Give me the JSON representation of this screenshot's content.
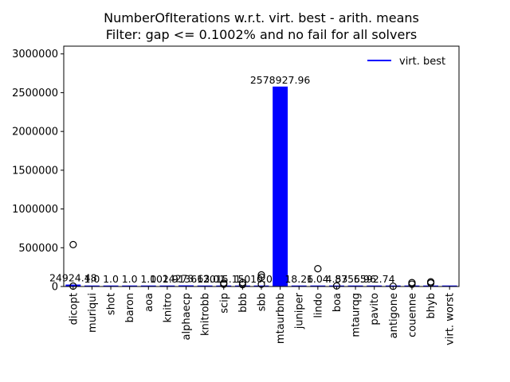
{
  "chart_data": {
    "type": "bar",
    "title_line1": "NumberOfIterations w.r.t. virt. best - arith. means",
    "title_line2": "Filter: gap <= 0.1002% and no fail for all solvers",
    "xlabel": "",
    "ylabel": "",
    "ylim": [
      0,
      3100000
    ],
    "yticks": [
      0,
      500000,
      1000000,
      1500000,
      2000000,
      2500000,
      3000000
    ],
    "ytick_labels": [
      "0",
      "500000",
      "1000000",
      "1500000",
      "2000000",
      "2500000",
      "3000000"
    ],
    "categories": [
      "dicopt",
      "muriqui",
      "shot",
      "baron",
      "aoa",
      "knitro",
      "alphaecp",
      "knitrobb",
      "scip",
      "bbb",
      "sbb",
      "mtaurbnb",
      "juniper",
      "lindo",
      "boa",
      "mtaurqg",
      "pavito",
      "antigone",
      "couenne",
      "bhyb",
      "virt. worst"
    ],
    "values": [
      24924.48,
      1.0,
      1.0,
      1.0,
      1.0,
      102.91,
      14273.63,
      3612.01,
      2015.15,
      1.0,
      10.0,
      2578927.96,
      18.26,
      1.04,
      4.53,
      8755.96,
      6592.74,
      0,
      0,
      0,
      0
    ],
    "value_labels": [
      "24924.48",
      "1.0",
      "1.0",
      "1.0",
      "1.0",
      "102.91",
      "14273.63",
      "3612.01",
      "2015.15",
      "1.0",
      "10.0",
      "2578927.96",
      "18.26",
      "1.04",
      "4.53",
      "8755.96",
      "6592.74",
      "",
      "",
      "",
      ""
    ],
    "outliers": [
      {
        "category": "dicopt",
        "values": [
          540000,
          5000
        ]
      },
      {
        "category": "scip",
        "values": [
          45000,
          30000
        ]
      },
      {
        "category": "bbb",
        "values": [
          50000,
          25000
        ]
      },
      {
        "category": "sbb",
        "values": [
          150000,
          120000,
          30000
        ]
      },
      {
        "category": "lindo",
        "values": [
          230000
        ]
      },
      {
        "category": "boa",
        "values": [
          8000
        ]
      },
      {
        "category": "antigone",
        "values": [
          3000
        ]
      },
      {
        "category": "couenne",
        "values": [
          50000,
          30000
        ]
      },
      {
        "category": "bhyb",
        "values": [
          60000,
          45000
        ]
      }
    ],
    "bar_color": "#0000ff",
    "series": [
      {
        "name": "virt. best",
        "color": "#0000ff"
      }
    ],
    "legend_position": "top-right",
    "grid": false
  }
}
